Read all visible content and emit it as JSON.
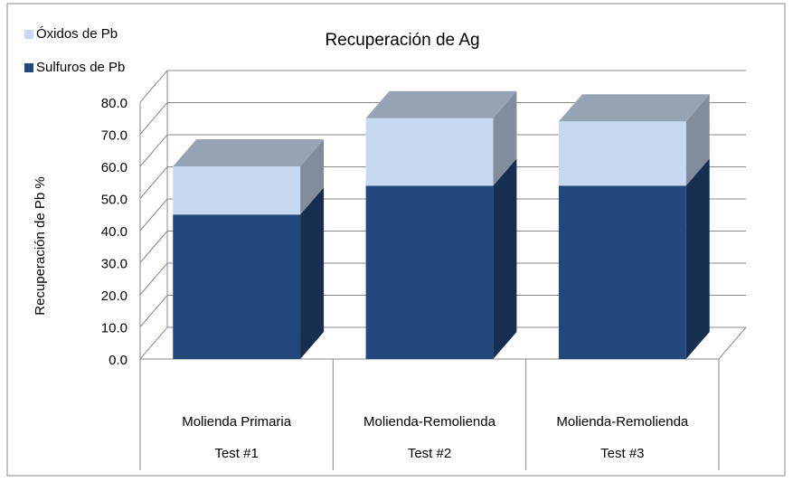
{
  "chart_data": {
    "type": "bar3d_stacked",
    "title": "Recuperación de Ag",
    "y_label": "Recuperación de Pb %",
    "categories": [
      [
        "Molienda Primaria",
        "Test #1"
      ],
      [
        "Molienda-Remolienda",
        "Test #2"
      ],
      [
        "Molienda-Remolienda",
        "Test #3"
      ]
    ],
    "series": [
      {
        "name": "Sulfuros de Pb",
        "color": "#22487d",
        "values": [
          45,
          54,
          54
        ]
      },
      {
        "name": "Óxidos de Pb",
        "color": "#c6d9f1",
        "values": [
          15,
          21,
          20
        ]
      }
    ],
    "ylim": [
      0,
      80
    ],
    "yticks": [
      {
        "value": 0,
        "label": "0.0"
      },
      {
        "value": 10,
        "label": "10.0"
      },
      {
        "value": 20,
        "label": "20.0"
      },
      {
        "value": 30,
        "label": "30.0"
      },
      {
        "value": 40,
        "label": "40.0"
      },
      {
        "value": 50,
        "label": "50.0"
      },
      {
        "value": 60,
        "label": "60.0"
      },
      {
        "value": 70,
        "label": "70.0"
      },
      {
        "value": 80,
        "label": "80.0"
      }
    ],
    "grid": true,
    "legend": "top-left"
  }
}
